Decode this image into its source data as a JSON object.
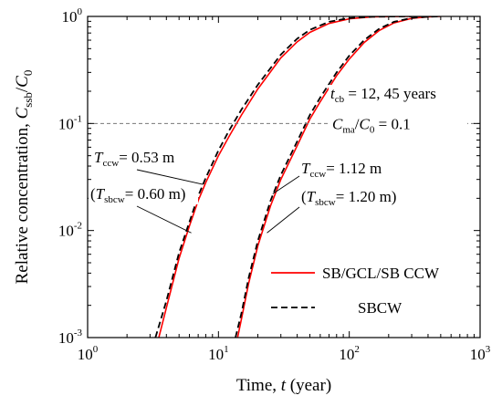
{
  "chart_data": {
    "type": "line",
    "xscale": "log",
    "yscale": "log",
    "xlim": [
      1,
      1000
    ],
    "ylim": [
      0.001,
      1
    ],
    "xlabel": {
      "main": "Time, ",
      "var": "t",
      "unit": " (year)"
    },
    "ylabel": {
      "main": "Relative concentration, ",
      "var": "C",
      "sub": "ssb",
      "div": "/",
      "var2": "C",
      "sub2": "0"
    },
    "x_ticks": [
      {
        "value": 1,
        "base": "10",
        "exp": "0"
      },
      {
        "value": 10,
        "base": "10",
        "exp": "1"
      },
      {
        "value": 100,
        "base": "10",
        "exp": "2"
      },
      {
        "value": 1000,
        "base": "10",
        "exp": "3"
      }
    ],
    "y_ticks": [
      {
        "value": 0.001,
        "base": "10",
        "exp": "-3"
      },
      {
        "value": 0.01,
        "base": "10",
        "exp": "-2"
      },
      {
        "value": 0.1,
        "base": "10",
        "exp": "-1"
      },
      {
        "value": 1,
        "base": "10",
        "exp": "0"
      }
    ],
    "reference_line": {
      "y": 0.1,
      "label_var": "C",
      "label_sub": "ma",
      "label_rest": "/",
      "label_var2": "C",
      "label_sub2": "0",
      "label_value": " = 0.1"
    },
    "series": [
      {
        "name": "SB/GCL/SB  CCW",
        "color": "#ff0000",
        "dash": "solid",
        "curves": [
          {
            "x": [
              3.5,
              4,
              5,
              6,
              7,
              8,
              10,
              12,
              15,
              20,
              30,
              40,
              50,
              70,
              100,
              150,
              200,
              300
            ],
            "y": [
              0.001,
              0.0019,
              0.0055,
              0.011,
              0.019,
              0.028,
              0.05,
              0.075,
              0.12,
              0.21,
              0.41,
              0.58,
              0.71,
              0.86,
              0.95,
              0.99,
              0.997,
              1.0
            ]
          },
          {
            "x": [
              14,
              15,
              17,
              20,
              25,
              30,
              40,
              50,
              60,
              80,
              100,
              130,
              170,
              220,
              300,
              400,
              500
            ],
            "y": [
              0.001,
              0.0015,
              0.0032,
              0.0072,
              0.017,
              0.03,
              0.062,
              0.11,
              0.16,
              0.28,
              0.4,
              0.57,
              0.74,
              0.87,
              0.96,
              0.993,
              1.0
            ]
          }
        ]
      },
      {
        "name": "SBCW",
        "color": "#000000",
        "dash": "dashed",
        "curves": [
          {
            "x": [
              3.3,
              4,
              5,
              6,
              7,
              8,
              10,
              12,
              15,
              20,
              30,
              40,
              50,
              70,
              100,
              150,
              200,
              300
            ],
            "y": [
              0.001,
              0.0022,
              0.0062,
              0.012,
              0.021,
              0.031,
              0.056,
              0.085,
              0.135,
              0.23,
              0.44,
              0.62,
              0.75,
              0.89,
              0.965,
              0.993,
              0.998,
              1.0
            ]
          },
          {
            "x": [
              13.5,
              15,
              17,
              20,
              25,
              30,
              40,
              50,
              60,
              80,
              100,
              130,
              170,
              220,
              300,
              400,
              500
            ],
            "y": [
              0.001,
              0.0017,
              0.0036,
              0.008,
              0.019,
              0.033,
              0.068,
              0.12,
              0.175,
              0.3,
              0.43,
              0.6,
              0.77,
              0.89,
              0.97,
              0.995,
              1.0
            ]
          }
        ]
      }
    ],
    "annotations": [
      {
        "id": "t_cb",
        "var": "t",
        "sub": "cb",
        "rest": " = 12, 45 years"
      },
      {
        "id": "t_ccw_1",
        "var": "T",
        "sub": "ccw",
        "rest": "= 0.53 m"
      },
      {
        "id": "t_sbcw_1",
        "open": "(",
        "var": "T",
        "sub": "sbcw",
        "rest": "= 0.60 m)"
      },
      {
        "id": "t_ccw_2",
        "var": "T",
        "sub": "ccw",
        "rest": "= 1.12 m"
      },
      {
        "id": "t_sbcw_2",
        "open": "(",
        "var": "T",
        "sub": "sbcw",
        "rest": "= 1.20 m)"
      }
    ],
    "legend_position": "lower-right",
    "grid": false
  }
}
